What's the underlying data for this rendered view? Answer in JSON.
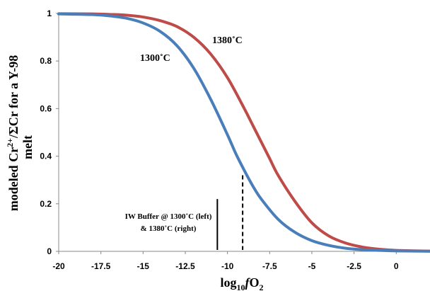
{
  "chart_data": {
    "type": "line",
    "title": "",
    "xlabel_main": "log",
    "xlabel_sub": "10",
    "xlabel_f": "f",
    "xlabel_o": "O",
    "xlabel_o_sub": "2",
    "ylabel_prefix": "modeled Cr",
    "ylabel_sup": "2+",
    "ylabel_suffix": "/ΣCr for a Y-98",
    "ylabel_line2": "melt",
    "xlim": [
      -20,
      2
    ],
    "ylim": [
      0,
      1
    ],
    "x_ticks": [
      {
        "value": -20,
        "label": "-20"
      },
      {
        "value": -17.5,
        "label": "-17.5"
      },
      {
        "value": -15,
        "label": "-15"
      },
      {
        "value": -12.5,
        "label": "-12.5"
      },
      {
        "value": -10,
        "label": "-10"
      },
      {
        "value": -7.5,
        "label": "-7.5"
      },
      {
        "value": -5,
        "label": "-5"
      },
      {
        "value": -2.5,
        "label": "-2.5"
      },
      {
        "value": 0,
        "label": "0"
      }
    ],
    "y_ticks": [
      {
        "value": 0,
        "label": "0"
      },
      {
        "value": 0.2,
        "label": "0.2"
      },
      {
        "value": 0.4,
        "label": "0.4"
      },
      {
        "value": 0.6,
        "label": "0.6"
      },
      {
        "value": 0.8,
        "label": "0.8"
      },
      {
        "value": 1,
        "label": "1"
      }
    ],
    "series": [
      {
        "name": "1300˚C",
        "color": "#4a7ebb",
        "x": [
          -20,
          -18,
          -17,
          -16,
          -15,
          -14,
          -13,
          -12,
          -11,
          -10,
          -9.5,
          -9,
          -8.5,
          -8,
          -7,
          -6,
          -5,
          -4,
          -3,
          -2,
          -1,
          0,
          2
        ],
        "y": [
          0.998,
          0.995,
          0.99,
          0.98,
          0.96,
          0.925,
          0.865,
          0.77,
          0.64,
          0.49,
          0.41,
          0.34,
          0.275,
          0.22,
          0.135,
          0.08,
          0.045,
          0.025,
          0.013,
          0.007,
          0.004,
          0.002,
          0.0005
        ]
      },
      {
        "name": "1380˚C",
        "color": "#be4b48",
        "x": [
          -20,
          -18,
          -17,
          -16,
          -15,
          -14,
          -13,
          -12,
          -11,
          -10,
          -9,
          -8.5,
          -8,
          -7.5,
          -7,
          -6,
          -5,
          -4,
          -3,
          -2,
          -1,
          0,
          2
        ],
        "y": [
          0.999,
          0.998,
          0.996,
          0.993,
          0.985,
          0.97,
          0.945,
          0.9,
          0.83,
          0.73,
          0.6,
          0.53,
          0.46,
          0.39,
          0.32,
          0.21,
          0.12,
          0.065,
          0.035,
          0.018,
          0.009,
          0.004,
          0.001
        ]
      }
    ],
    "annotations": {
      "iw_line1": "IW Buffer @ 1300˚C (left)",
      "iw_line2": "& 1380˚C (right)",
      "iw_left": {
        "x": -10.6,
        "y_top": 0.22,
        "style": "solid"
      },
      "iw_right": {
        "x": -9.1,
        "y_top": 0.32,
        "style": "dashed"
      }
    },
    "grid": false,
    "legend": "none"
  }
}
